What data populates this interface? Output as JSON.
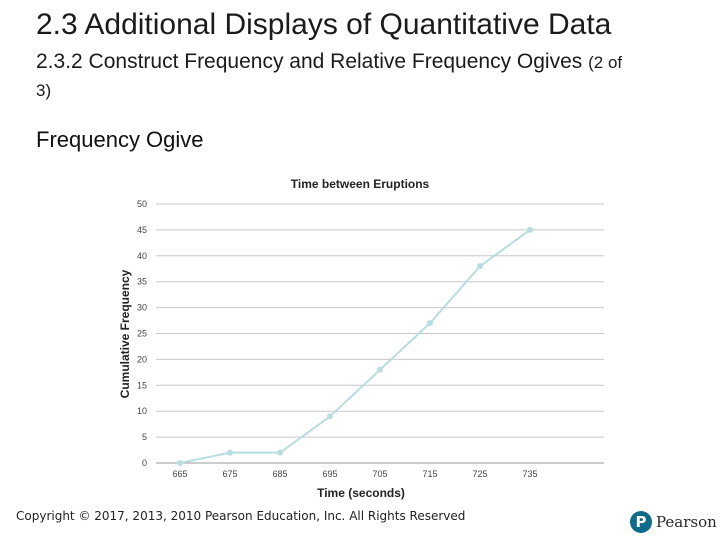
{
  "slide": {
    "title": "2.3 Additional Displays of Quantitative Data",
    "subtitle_main": "2.3.2 Construct Frequency and Relative Frequency Ogives",
    "subtitle_small": "(2 of 3)",
    "section_heading": "Frequency Ogive",
    "copyright": "Copyright © 2017, 2013, 2010 Pearson Education, Inc. All Rights Reserved",
    "logo_mark": "P",
    "logo_text": "Pearson"
  },
  "chart_data": {
    "type": "line",
    "title": "Time between Eruptions",
    "xlabel": "Time (seconds)",
    "ylabel": "Cumulative Frequency",
    "x": [
      665,
      675,
      685,
      695,
      705,
      715,
      725,
      735
    ],
    "x_tick_labels": [
      "665",
      "675",
      "685",
      "695",
      "705",
      "715",
      "725",
      "735"
    ],
    "y_ticks": [
      0,
      5,
      10,
      15,
      20,
      25,
      30,
      35,
      40,
      45,
      50
    ],
    "ylim": [
      0,
      50
    ],
    "grid": "horizontal",
    "line_color": "#b8dde0",
    "marker_color": "#b8dde0",
    "series": [
      {
        "values": [
          0,
          2,
          2,
          9,
          18,
          27,
          38,
          45
        ]
      }
    ]
  }
}
